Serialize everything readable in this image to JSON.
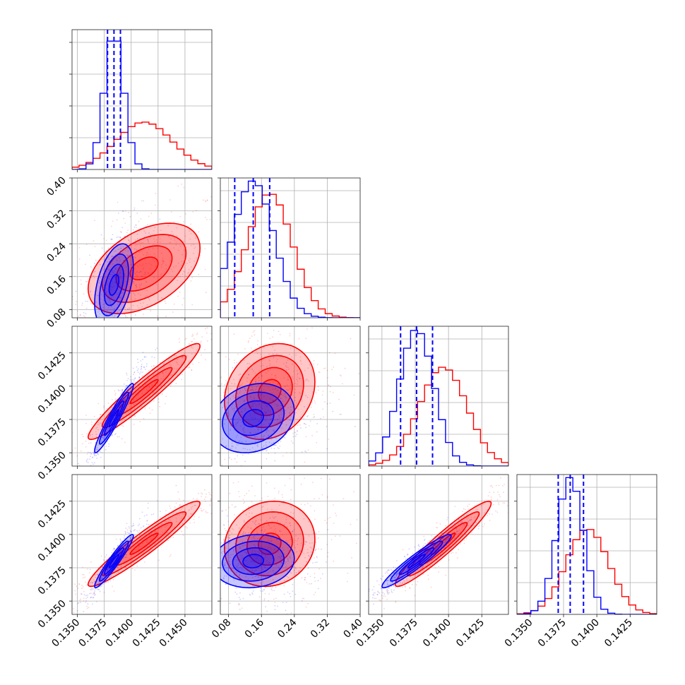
{
  "chart_data": {
    "type": "corner",
    "colors": {
      "blue": "#0000ff",
      "red": "#ff0000"
    },
    "grid": true,
    "params": [
      {
        "range": [
          0.1345,
          0.1475
        ],
        "ticks": [
          "0.1350",
          "0.1375",
          "0.1400",
          "0.1425",
          "0.1450"
        ],
        "tick_values": [
          0.135,
          0.1375,
          0.14,
          0.1425,
          0.145
        ]
      },
      {
        "range": [
          0.06,
          0.4
        ],
        "ticks": [
          "0.08",
          "0.16",
          "0.24",
          "0.32",
          "0.40"
        ],
        "tick_values": [
          0.08,
          0.16,
          0.24,
          0.32,
          0.4
        ]
      },
      {
        "range": [
          0.134,
          0.1445
        ],
        "ticks": [
          "0.1350",
          "0.1375",
          "0.1400",
          "0.1425"
        ],
        "tick_values": [
          0.135,
          0.1375,
          0.14,
          0.1425
        ]
      },
      {
        "range": [
          0.134,
          0.1445
        ],
        "ticks": [
          "0.1350",
          "0.1375",
          "0.1400",
          "0.1425"
        ],
        "tick_values": [
          0.135,
          0.1375,
          0.14,
          0.1425
        ]
      }
    ],
    "series": [
      {
        "color": "blue",
        "means": [
          0.1384,
          0.14,
          0.1376,
          0.138
        ],
        "sds": [
          0.0009,
          0.05,
          0.0013,
          0.001
        ],
        "quantiles": [
          [
            0.1378,
            0.1384,
            0.139
          ],
          [
            0.095,
            0.14,
            0.18
          ],
          [
            0.1364,
            0.1376,
            0.1388
          ],
          [
            0.1371,
            0.138,
            0.139
          ]
        ]
      },
      {
        "color": "red",
        "means": [
          0.1412,
          0.18,
          0.1396,
          0.1393
        ],
        "sds": [
          0.0026,
          0.055,
          0.0018,
          0.0016
        ],
        "quantiles": []
      }
    ]
  }
}
